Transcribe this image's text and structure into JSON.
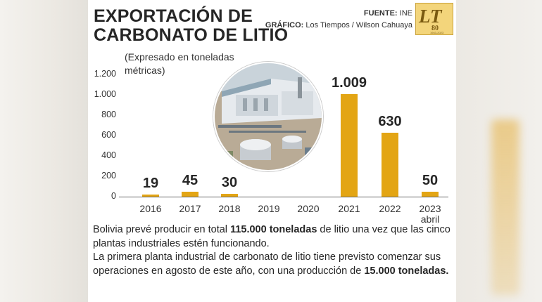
{
  "title_line1": "EXPORTACIÓN DE",
  "title_line2": "CARBONATO DE LITIO",
  "source_label": "FUENTE:",
  "source_value": "INE",
  "graphic_label": "GRÁFICO:",
  "graphic_value": "Los Tiempos / Wilson Cahuaya",
  "logo": {
    "letters": "LT",
    "number": "80",
    "years": "1943-2023",
    "color": "#f3d57b"
  },
  "caption": {
    "p1_a": "Bolivia prevé producir en total ",
    "p1_b": "115.000 toneladas",
    "p1_c": " de litio una vez que las cinco plantas industriales estén funcionando.",
    "p2_a": "La primera planta industrial de carbonato de litio tiene previsto comenzar sus operaciones en agosto de este año, con una producción de ",
    "p2_b": "15.000 toneladas."
  },
  "chart_data": {
    "type": "bar",
    "title": "EXPORTACIÓN DE CARBONATO DE LITIO",
    "subtitle": "(Expresado en toneladas métricas)",
    "categories": [
      "2016",
      "2017",
      "2018",
      "2019",
      "2020",
      "2021",
      "2022",
      "2023"
    ],
    "category_sublabels": [
      "",
      "",
      "",
      "",
      "",
      "",
      "",
      "abril"
    ],
    "values": [
      19,
      45,
      30,
      null,
      null,
      1009,
      630,
      50
    ],
    "value_labels": [
      "19",
      "45",
      "30",
      "",
      "",
      "1.009",
      "630",
      "50"
    ],
    "yticks": [
      0,
      200,
      400,
      600,
      800,
      1000,
      1200
    ],
    "ytick_labels": [
      "0",
      "200",
      "400",
      "600",
      "800",
      "1.000",
      "1.200"
    ],
    "ylim": [
      0,
      1200
    ],
    "grid": false,
    "bar_color": "#e3a514"
  }
}
